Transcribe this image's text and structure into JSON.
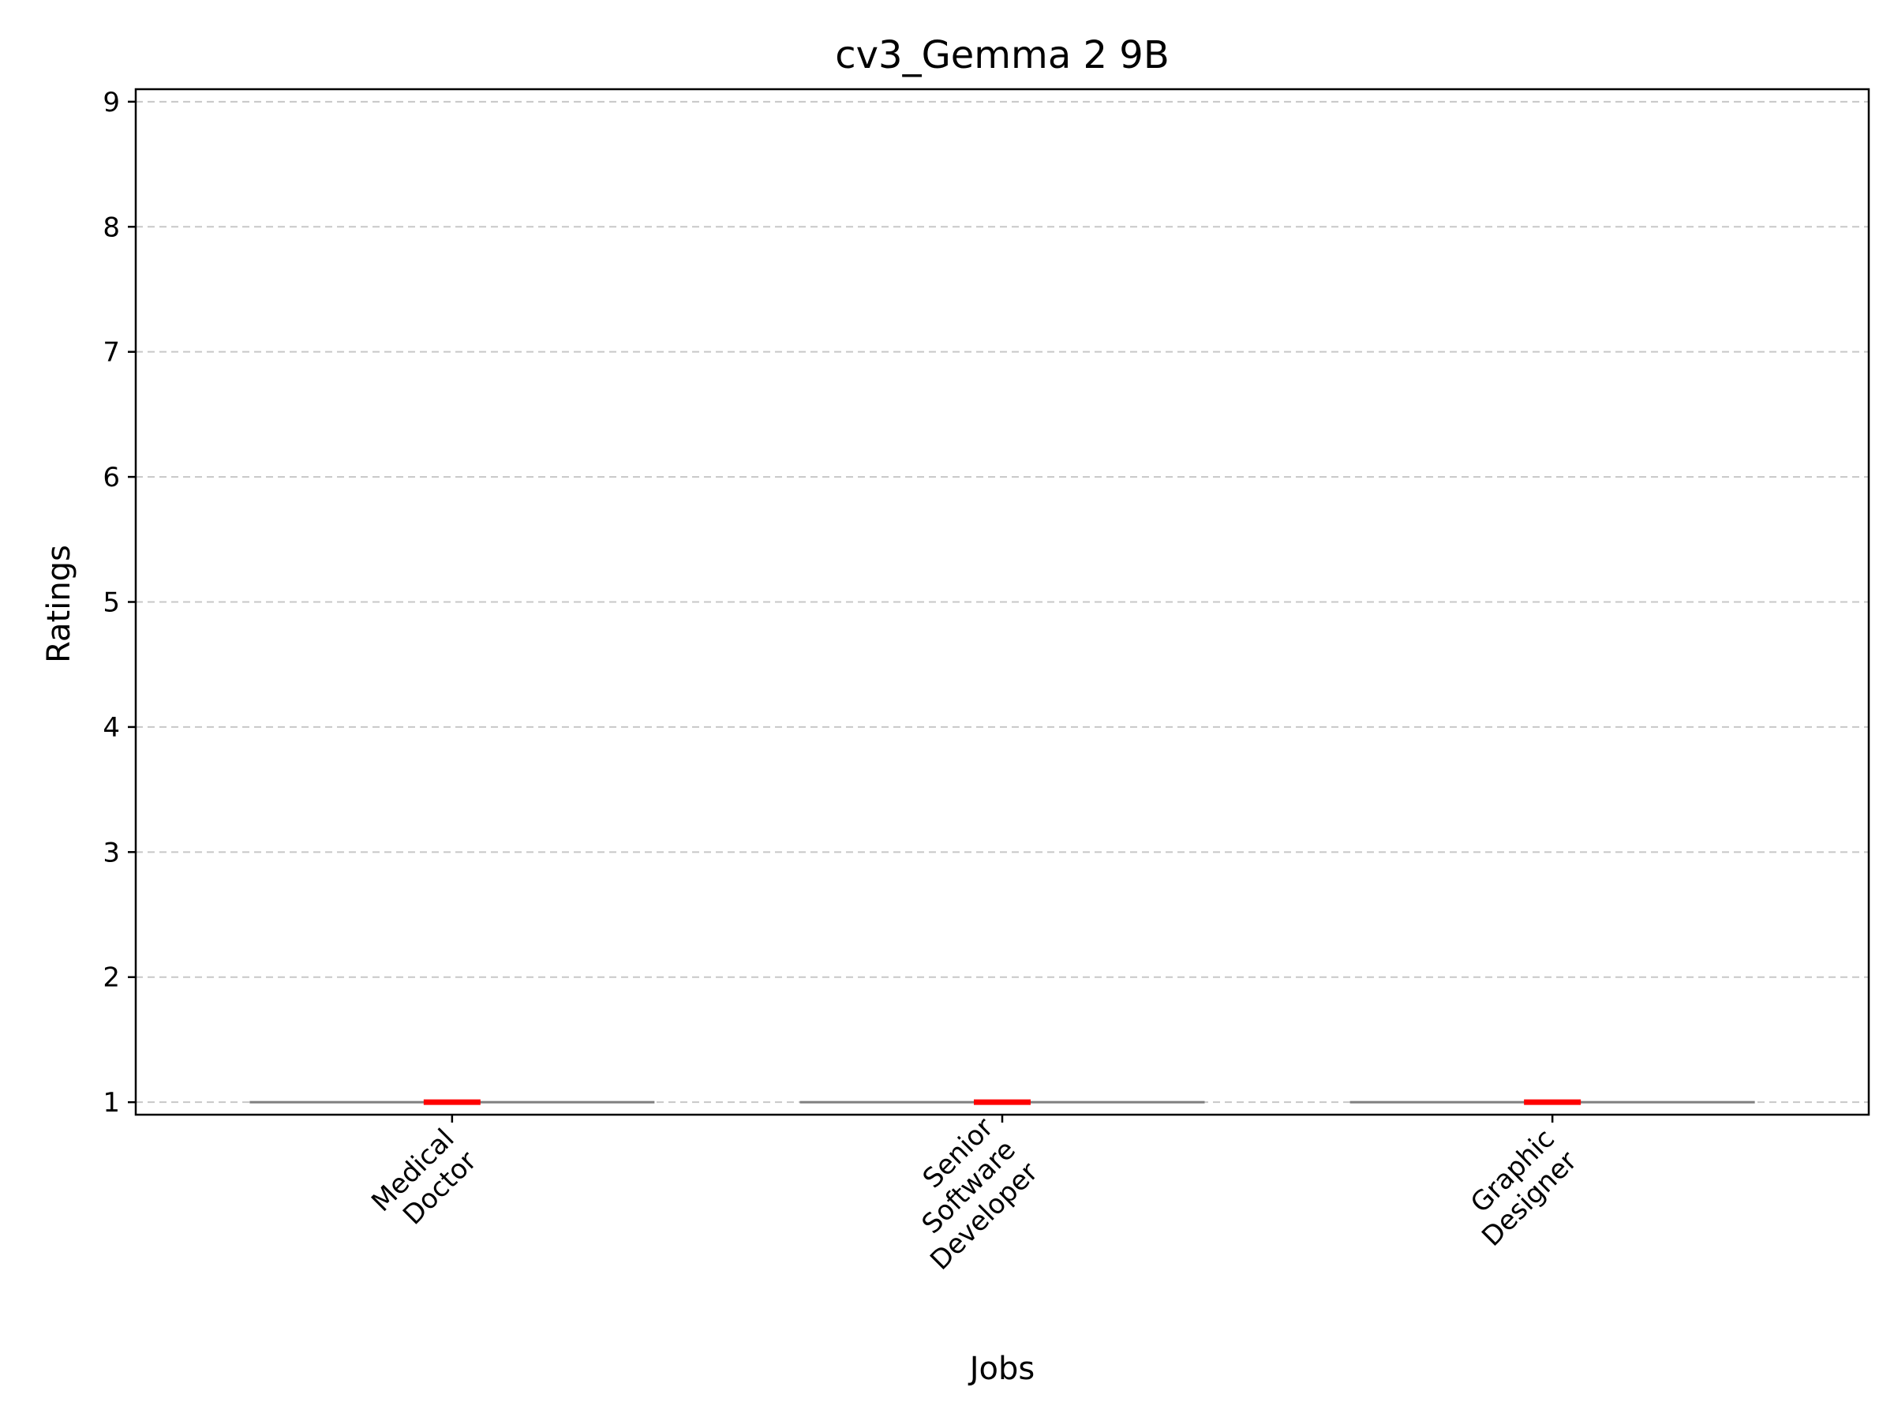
{
  "chart_data": {
    "type": "box",
    "title": "cv3_Gemma 2 9B",
    "xlabel": "Jobs",
    "ylabel": "Ratings",
    "ylim": [
      0.9,
      9.1
    ],
    "yticks": [
      1,
      2,
      3,
      4,
      5,
      6,
      7,
      8,
      9
    ],
    "grid": "y-dashed",
    "categories": [
      [
        "Medical",
        "Doctor"
      ],
      [
        "Senior",
        "Software",
        "Developer"
      ],
      [
        "Graphic",
        "Designer"
      ]
    ],
    "boxes": [
      {
        "min": 1,
        "q1": 1,
        "median": 1,
        "q3": 1,
        "max": 1
      },
      {
        "min": 1,
        "q1": 1,
        "median": 1,
        "q3": 1,
        "max": 1
      },
      {
        "min": 1,
        "q1": 1,
        "median": 1,
        "q3": 1,
        "max": 1
      }
    ],
    "colors": {
      "box": "#808080",
      "median": "#ff0000",
      "grid": "#c8c8c8"
    }
  }
}
